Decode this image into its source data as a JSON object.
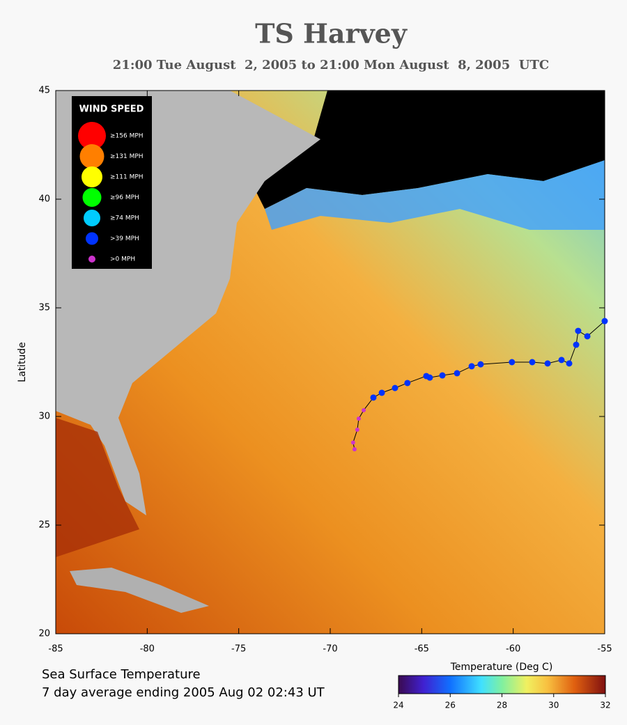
{
  "chart_data": {
    "type": "track-map",
    "title": "TS Harvey",
    "subtitle": "21:00 Tue August  2, 2005 to 21:00 Mon August  8, 2005  UTC",
    "ylabel": "Latitude",
    "xlim": [
      -85,
      -55
    ],
    "xticks": [
      -85,
      -80,
      -75,
      -70,
      -65,
      -60,
      -55
    ],
    "ylim": [
      20,
      45
    ],
    "yticks": [
      20,
      25,
      30,
      35,
      40,
      45
    ],
    "legend_title": "WIND SPEED",
    "series": [
      {
        "name": "≥156 MPH",
        "color": "#ff0000",
        "x": [],
        "y": []
      },
      {
        "name": "≥131 MPH",
        "color": "#ff7f00",
        "x": [],
        "y": []
      },
      {
        "name": "≥111 MPH",
        "color": "#ffff00",
        "x": [],
        "y": []
      },
      {
        "name": "≥96 MPH",
        "color": "#00ff00",
        "x": [],
        "y": []
      },
      {
        "name": "≥74 MPH",
        "color": "#00ccff",
        "x": [],
        "y": []
      },
      {
        "name": ">39 MPH",
        "color": "#0033ff",
        "x": [
          -67.64,
          -67.18,
          -66.46,
          -65.78,
          -64.75,
          -64.56,
          -63.87,
          -63.07,
          -62.27,
          -61.78,
          -60.07,
          -58.96,
          -58.12,
          -57.36,
          -56.94,
          -56.56,
          -56.45,
          -55.95,
          -55.0
        ],
        "y": [
          30.87,
          31.09,
          31.31,
          31.54,
          31.86,
          31.79,
          31.89,
          31.99,
          32.31,
          32.4,
          32.5,
          32.5,
          32.44,
          32.6,
          32.44,
          33.3,
          33.94,
          33.69,
          34.39
        ]
      },
      {
        "name": ">0 MPH",
        "color": "#cc33cc",
        "x": [
          -68.67,
          -68.75,
          -68.52,
          -68.44,
          -68.17
        ],
        "y": [
          28.49,
          28.8,
          29.39,
          29.9,
          30.29
        ]
      }
    ],
    "footer": [
      "Sea Surface Temperature",
      "7 day average ending 2005 Aug 02 02:43 UT"
    ],
    "colorbar_label": "Temperature (Deg C)",
    "clim": [
      24,
      32
    ],
    "cticks": [
      24,
      26,
      28,
      30,
      32
    ]
  }
}
